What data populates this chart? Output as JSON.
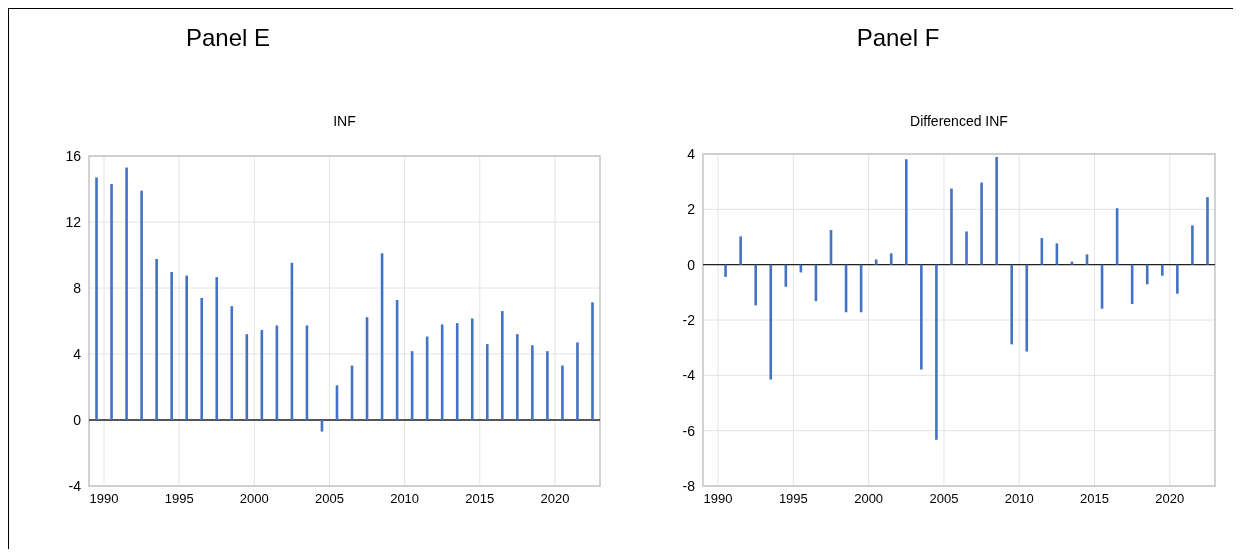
{
  "chart_data": [
    {
      "type": "bar",
      "title": "Panel E",
      "subtitle": "INF",
      "x": [
        1989.5,
        1990.5,
        1991.5,
        1992.5,
        1993.5,
        1994.5,
        1995.5,
        1996.5,
        1997.5,
        1998.5,
        1999.5,
        2000.5,
        2001.5,
        2002.5,
        2003.5,
        2004.5,
        2005.5,
        2006.5,
        2007.5,
        2008.5,
        2009.5,
        2010.5,
        2011.5,
        2012.5,
        2013.5,
        2014.5,
        2015.5,
        2016.5,
        2017.5,
        2018.5,
        2019.5,
        2020.5,
        2021.5,
        2022.5
      ],
      "series": [
        {
          "color": "#4472c4",
          "values": [
            14.7,
            14.3,
            15.3,
            13.9,
            9.76,
            8.97,
            8.75,
            7.4,
            8.66,
            6.9,
            5.2,
            5.45,
            5.73,
            9.53,
            5.73,
            -0.7,
            2.1,
            3.3,
            6.23,
            10.1,
            7.27,
            4.17,
            5.06,
            5.79,
            5.87,
            6.15,
            4.6,
            6.6,
            5.2,
            4.53,
            4.17,
            3.3,
            4.7,
            7.13
          ]
        }
      ],
      "xlim": [
        1989,
        2023
      ],
      "xticks": [
        1990,
        1995,
        2000,
        2005,
        2010,
        2015,
        2020
      ],
      "ylim": [
        -4,
        16
      ],
      "yticks": [
        -4,
        0,
        4,
        8,
        12,
        16
      ],
      "grid": true
    },
    {
      "type": "bar",
      "title": "Panel F",
      "subtitle": "Differenced INF",
      "x": [
        1990.5,
        1991.5,
        1992.5,
        1993.5,
        1994.5,
        1995.5,
        1996.5,
        1997.5,
        1998.5,
        1999.5,
        2000.5,
        2001.5,
        2002.5,
        2003.5,
        2004.5,
        2005.5,
        2006.5,
        2007.5,
        2008.5,
        2009.5,
        2010.5,
        2011.5,
        2012.5,
        2013.5,
        2014.5,
        2015.5,
        2016.5,
        2017.5,
        2018.5,
        2019.5,
        2020.5,
        2021.5,
        2022.5
      ],
      "series": [
        {
          "color": "#4472c4",
          "values": [
            -0.44,
            1.02,
            -1.47,
            -4.15,
            -0.8,
            -0.28,
            -1.32,
            1.25,
            -1.72,
            -1.72,
            0.19,
            0.41,
            3.81,
            -3.79,
            -6.33,
            2.75,
            1.2,
            2.97,
            3.89,
            -2.88,
            -3.14,
            0.96,
            0.77,
            0.11,
            0.37,
            -1.59,
            2.04,
            -1.42,
            -0.71,
            -0.4,
            -1.05,
            1.42,
            2.44
          ]
        }
      ],
      "xlim": [
        1989,
        2023
      ],
      "xticks": [
        1990,
        1995,
        2000,
        2005,
        2010,
        2015,
        2020
      ],
      "ylim": [
        -8,
        4
      ],
      "yticks": [
        -8,
        -6,
        -4,
        -2,
        0,
        2,
        4
      ],
      "grid": true
    }
  ]
}
